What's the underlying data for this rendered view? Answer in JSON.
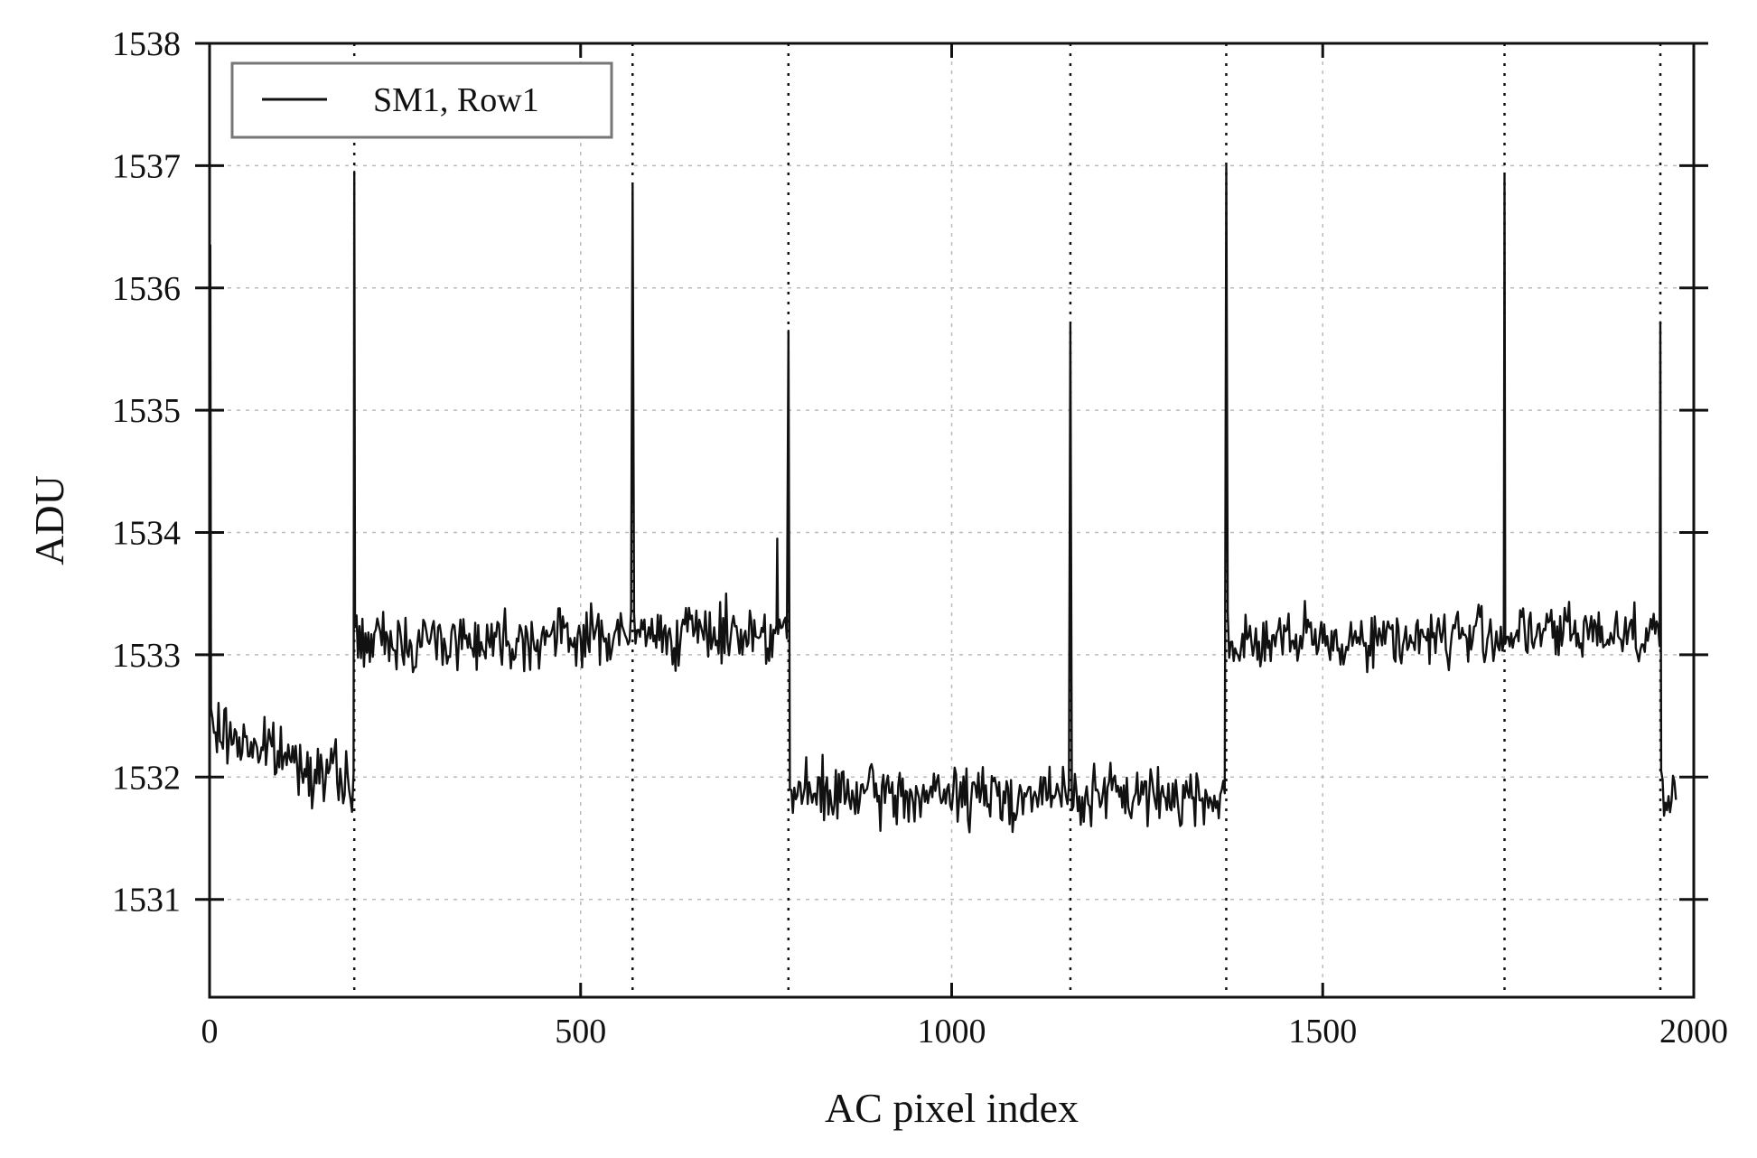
{
  "chart_data": {
    "type": "line",
    "title": "",
    "xlabel": "AC pixel index",
    "ylabel": "ADU",
    "xlim": [
      0,
      2000
    ],
    "ylim": [
      1530.2,
      1538
    ],
    "xticks": [
      0,
      500,
      1000,
      1500,
      2000
    ],
    "yticks": [
      1531,
      1532,
      1533,
      1534,
      1535,
      1536,
      1537,
      1538
    ],
    "grid": true,
    "legend": {
      "placement": "top-left",
      "entries": [
        "SM1, Row1"
      ]
    },
    "vlines": [
      195,
      570,
      780,
      1160,
      1370,
      1745,
      1955
    ],
    "series": [
      {
        "name": "SM1, Row1",
        "color": "#111111",
        "x_range": [
          0,
          1977
        ],
        "levels": [
          {
            "x_start": 0,
            "x_end": 195,
            "start_value": 1532.4,
            "end_value": 1531.95
          },
          {
            "x_start": 195,
            "x_end": 780,
            "start_value": 1533.1,
            "end_value": 1533.2
          },
          {
            "x_start": 780,
            "x_end": 1370,
            "start_value": 1531.85,
            "end_value": 1531.85
          },
          {
            "x_start": 1370,
            "x_end": 1955,
            "start_value": 1533.1,
            "end_value": 1533.2
          },
          {
            "x_start": 1955,
            "x_end": 1977,
            "start_value": 1531.9,
            "end_value": 1531.8
          }
        ],
        "noise_amplitude": 0.12,
        "spikes": [
          {
            "x": 1,
            "value": 1536.35
          },
          {
            "x": 195,
            "value": 1536.95
          },
          {
            "x": 570,
            "value": 1536.85
          },
          {
            "x": 765,
            "value": 1533.95
          },
          {
            "x": 780,
            "value": 1535.65
          },
          {
            "x": 1160,
            "value": 1535.7
          },
          {
            "x": 1370,
            "value": 1537.0
          },
          {
            "x": 1745,
            "value": 1536.92
          },
          {
            "x": 1955,
            "value": 1535.72
          }
        ]
      }
    ]
  }
}
